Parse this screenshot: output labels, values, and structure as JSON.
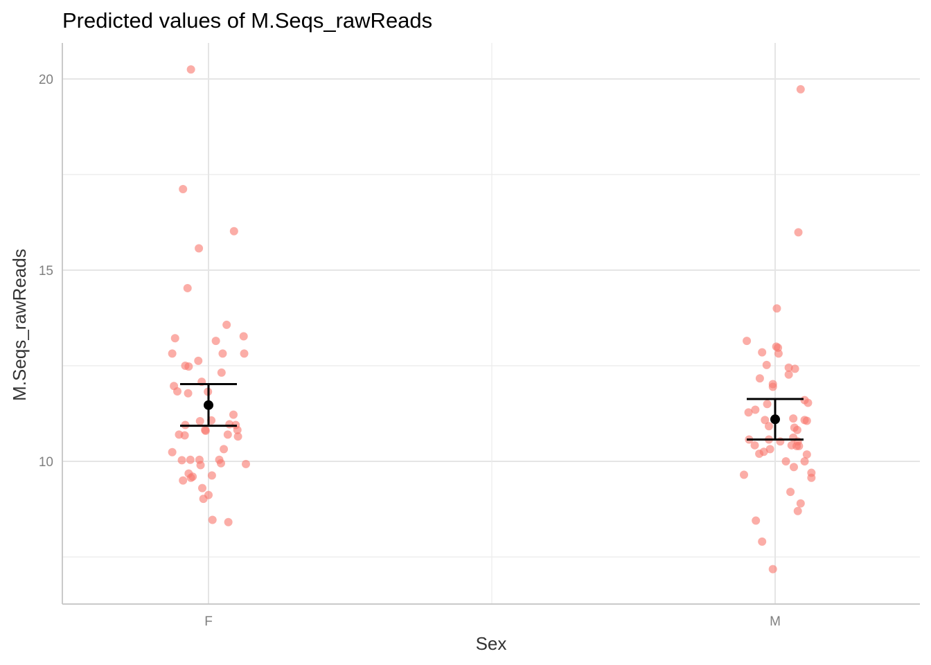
{
  "chart_data": {
    "type": "scatter",
    "title": "Predicted values of M.Seqs_rawReads",
    "xlabel": "Sex",
    "ylabel": "M.Seqs_rawReads",
    "categories": [
      "F",
      "M"
    ],
    "ylim": [
      6.85,
      21.2
    ],
    "y_ticks": [
      10,
      15,
      20
    ],
    "y_minor_ticks": [
      7.5,
      12.5,
      17.5
    ],
    "grid": true,
    "point_color": "#F8766D",
    "estimate_color": "#000000",
    "estimates": [
      {
        "category": "F",
        "value": 11.47,
        "ci_low": 10.93,
        "ci_high": 12.02
      },
      {
        "category": "M",
        "value": 11.1,
        "ci_low": 10.57,
        "ci_high": 11.63
      }
    ],
    "observations": [
      {
        "category": "F",
        "offset": -0.031,
        "value": 20.25
      },
      {
        "category": "F",
        "offset": -0.045,
        "value": 17.12
      },
      {
        "category": "F",
        "offset": 0.045,
        "value": 16.02
      },
      {
        "category": "F",
        "offset": -0.017,
        "value": 15.57
      },
      {
        "category": "F",
        "offset": -0.037,
        "value": 14.53
      },
      {
        "category": "F",
        "offset": 0.032,
        "value": 13.57
      },
      {
        "category": "F",
        "offset": 0.062,
        "value": 13.27
      },
      {
        "category": "F",
        "offset": -0.059,
        "value": 13.22
      },
      {
        "category": "F",
        "offset": 0.013,
        "value": 13.15
      },
      {
        "category": "F",
        "offset": -0.064,
        "value": 12.82
      },
      {
        "category": "F",
        "offset": 0.025,
        "value": 12.82
      },
      {
        "category": "F",
        "offset": 0.063,
        "value": 12.82
      },
      {
        "category": "F",
        "offset": -0.018,
        "value": 12.63
      },
      {
        "category": "F",
        "offset": -0.041,
        "value": 12.5
      },
      {
        "category": "F",
        "offset": -0.035,
        "value": 12.48
      },
      {
        "category": "F",
        "offset": 0.023,
        "value": 12.32
      },
      {
        "category": "F",
        "offset": -0.012,
        "value": 12.08
      },
      {
        "category": "F",
        "offset": -0.061,
        "value": 11.97
      },
      {
        "category": "F",
        "offset": -0.055,
        "value": 11.83
      },
      {
        "category": "F",
        "offset": -0.036,
        "value": 11.78
      },
      {
        "category": "F",
        "offset": -0.001,
        "value": 11.82
      },
      {
        "category": "F",
        "offset": 0.044,
        "value": 11.22
      },
      {
        "category": "F",
        "offset": -0.015,
        "value": 11.05
      },
      {
        "category": "F",
        "offset": 0.005,
        "value": 11.07
      },
      {
        "category": "F",
        "offset": -0.041,
        "value": 10.95
      },
      {
        "category": "F",
        "offset": 0.037,
        "value": 10.97
      },
      {
        "category": "F",
        "offset": 0.048,
        "value": 10.95
      },
      {
        "category": "F",
        "offset": -0.006,
        "value": 10.82
      },
      {
        "category": "F",
        "offset": -0.005,
        "value": 10.8
      },
      {
        "category": "F",
        "offset": 0.051,
        "value": 10.82
      },
      {
        "category": "F",
        "offset": -0.052,
        "value": 10.7
      },
      {
        "category": "F",
        "offset": -0.042,
        "value": 10.68
      },
      {
        "category": "F",
        "offset": 0.034,
        "value": 10.7
      },
      {
        "category": "F",
        "offset": 0.052,
        "value": 10.65
      },
      {
        "category": "F",
        "offset": 0.027,
        "value": 10.32
      },
      {
        "category": "F",
        "offset": -0.064,
        "value": 10.24
      },
      {
        "category": "F",
        "offset": -0.047,
        "value": 10.03
      },
      {
        "category": "F",
        "offset": -0.032,
        "value": 10.04
      },
      {
        "category": "F",
        "offset": -0.016,
        "value": 10.04
      },
      {
        "category": "F",
        "offset": 0.019,
        "value": 10.04
      },
      {
        "category": "F",
        "offset": 0.022,
        "value": 9.95
      },
      {
        "category": "F",
        "offset": 0.066,
        "value": 9.93
      },
      {
        "category": "F",
        "offset": -0.014,
        "value": 9.9
      },
      {
        "category": "F",
        "offset": -0.035,
        "value": 9.68
      },
      {
        "category": "F",
        "offset": 0.006,
        "value": 9.63
      },
      {
        "category": "F",
        "offset": -0.028,
        "value": 9.6
      },
      {
        "category": "F",
        "offset": -0.031,
        "value": 9.57
      },
      {
        "category": "F",
        "offset": -0.045,
        "value": 9.5
      },
      {
        "category": "F",
        "offset": -0.011,
        "value": 9.3
      },
      {
        "category": "F",
        "offset": 0.0,
        "value": 9.12
      },
      {
        "category": "F",
        "offset": -0.009,
        "value": 9.02
      },
      {
        "category": "F",
        "offset": 0.007,
        "value": 8.47
      },
      {
        "category": "F",
        "offset": 0.035,
        "value": 8.41
      },
      {
        "category": "M",
        "offset": 0.045,
        "value": 19.73
      },
      {
        "category": "M",
        "offset": 0.041,
        "value": 15.99
      },
      {
        "category": "M",
        "offset": 0.003,
        "value": 14.0
      },
      {
        "category": "M",
        "offset": -0.05,
        "value": 13.15
      },
      {
        "category": "M",
        "offset": 0.002,
        "value": 13.0
      },
      {
        "category": "M",
        "offset": 0.005,
        "value": 12.97
      },
      {
        "category": "M",
        "offset": -0.023,
        "value": 12.85
      },
      {
        "category": "M",
        "offset": 0.006,
        "value": 12.82
      },
      {
        "category": "M",
        "offset": -0.015,
        "value": 12.52
      },
      {
        "category": "M",
        "offset": 0.024,
        "value": 12.45
      },
      {
        "category": "M",
        "offset": 0.035,
        "value": 12.42
      },
      {
        "category": "M",
        "offset": 0.024,
        "value": 12.27
      },
      {
        "category": "M",
        "offset": -0.027,
        "value": 12.17
      },
      {
        "category": "M",
        "offset": -0.004,
        "value": 12.02
      },
      {
        "category": "M",
        "offset": -0.004,
        "value": 11.95
      },
      {
        "category": "M",
        "offset": 0.052,
        "value": 11.6
      },
      {
        "category": "M",
        "offset": 0.058,
        "value": 11.53
      },
      {
        "category": "M",
        "offset": -0.014,
        "value": 11.5
      },
      {
        "category": "M",
        "offset": -0.035,
        "value": 11.35
      },
      {
        "category": "M",
        "offset": -0.047,
        "value": 11.28
      },
      {
        "category": "M",
        "offset": -0.018,
        "value": 11.08
      },
      {
        "category": "M",
        "offset": 0.032,
        "value": 11.12
      },
      {
        "category": "M",
        "offset": 0.052,
        "value": 11.08
      },
      {
        "category": "M",
        "offset": 0.056,
        "value": 11.06
      },
      {
        "category": "M",
        "offset": -0.011,
        "value": 10.92
      },
      {
        "category": "M",
        "offset": 0.034,
        "value": 10.88
      },
      {
        "category": "M",
        "offset": 0.039,
        "value": 10.82
      },
      {
        "category": "M",
        "offset": 0.032,
        "value": 10.62
      },
      {
        "category": "M",
        "offset": -0.046,
        "value": 10.57
      },
      {
        "category": "M",
        "offset": -0.011,
        "value": 10.57
      },
      {
        "category": "M",
        "offset": 0.009,
        "value": 10.52
      },
      {
        "category": "M",
        "offset": 0.04,
        "value": 10.52
      },
      {
        "category": "M",
        "offset": -0.036,
        "value": 10.42
      },
      {
        "category": "M",
        "offset": 0.029,
        "value": 10.42
      },
      {
        "category": "M",
        "offset": 0.038,
        "value": 10.4
      },
      {
        "category": "M",
        "offset": 0.042,
        "value": 10.4
      },
      {
        "category": "M",
        "offset": -0.009,
        "value": 10.32
      },
      {
        "category": "M",
        "offset": -0.02,
        "value": 10.25
      },
      {
        "category": "M",
        "offset": -0.028,
        "value": 10.2
      },
      {
        "category": "M",
        "offset": 0.056,
        "value": 10.18
      },
      {
        "category": "M",
        "offset": 0.052,
        "value": 10.0
      },
      {
        "category": "M",
        "offset": 0.019,
        "value": 10.0
      },
      {
        "category": "M",
        "offset": 0.033,
        "value": 9.85
      },
      {
        "category": "M",
        "offset": 0.064,
        "value": 9.7
      },
      {
        "category": "M",
        "offset": 0.064,
        "value": 9.57
      },
      {
        "category": "M",
        "offset": -0.055,
        "value": 9.65
      },
      {
        "category": "M",
        "offset": 0.027,
        "value": 9.2
      },
      {
        "category": "M",
        "offset": 0.045,
        "value": 8.9
      },
      {
        "category": "M",
        "offset": 0.04,
        "value": 8.7
      },
      {
        "category": "M",
        "offset": -0.034,
        "value": 8.45
      },
      {
        "category": "M",
        "offset": -0.023,
        "value": 7.9
      },
      {
        "category": "M",
        "offset": -0.004,
        "value": 7.18
      }
    ]
  }
}
